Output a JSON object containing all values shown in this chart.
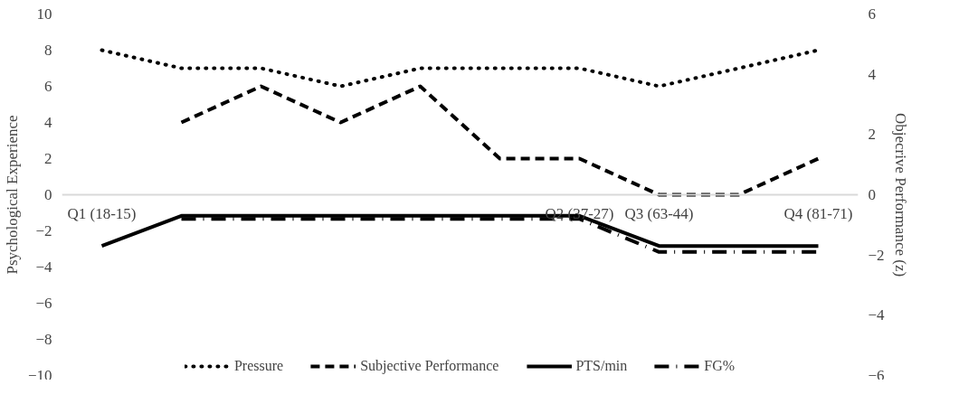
{
  "chart_data": {
    "type": "line",
    "ylabel": "Psychological Experience",
    "y2label": "Objecrive Performance (z)",
    "categories": [
      "Q1 (18-15)",
      null,
      null,
      null,
      null,
      null,
      "Q2 (37-27)",
      "Q3 (63-44)",
      null,
      "Q4 (81-71)"
    ],
    "ylim": [
      -10,
      10
    ],
    "yticks": [
      -10,
      -8,
      -6,
      -4,
      -2,
      0,
      2,
      4,
      6,
      8,
      10
    ],
    "y2lim": [
      -6,
      6
    ],
    "y2ticks": [
      -6,
      -4,
      -2,
      0,
      2,
      4,
      6
    ],
    "series": [
      {
        "name": "Pressure",
        "color": "#000000",
        "line_style": "dotted",
        "values": [
          8,
          7,
          7,
          6,
          7,
          7,
          7,
          6,
          7,
          8
        ]
      },
      {
        "name": "Subjective Performance",
        "color": "#000000",
        "line_style": "dashed",
        "values": [
          null,
          4,
          6,
          4,
          6,
          2,
          2,
          0,
          0,
          2
        ]
      },
      {
        "name": "PTS/min",
        "color": "#000000",
        "line_style": "solid",
        "axis": "y2",
        "values": [
          -1.7,
          -0.7,
          -0.7,
          -0.7,
          -0.7,
          -0.7,
          -0.7,
          -1.7,
          -1.7,
          -1.7
        ]
      },
      {
        "name": "FG%",
        "color": "#000000",
        "line_style": "dashdot",
        "axis": "y2",
        "values": [
          null,
          -0.8,
          -0.8,
          -0.8,
          -0.8,
          -0.8,
          -0.8,
          -1.9,
          -1.9,
          -1.9
        ]
      }
    ],
    "grid": false,
    "legend": "bottom",
    "marker": "none"
  }
}
